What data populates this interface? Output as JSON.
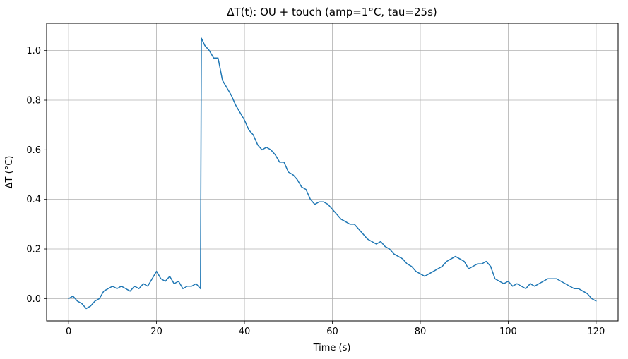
{
  "chart_data": {
    "type": "line",
    "title": "ΔT(t): OU + touch (amp=1°C, tau=25s)",
    "xlabel": "Time (s)",
    "ylabel": "ΔT (°C)",
    "xlim": [
      -5,
      125
    ],
    "ylim": [
      -0.09,
      1.11
    ],
    "grid": true,
    "legend": "none",
    "line_color": "#1f77b4",
    "grid_color": "#b0b0b0",
    "xticks": {
      "values": [
        0,
        20,
        40,
        60,
        80,
        100,
        120
      ],
      "labels": [
        "0",
        "20",
        "40",
        "60",
        "80",
        "100",
        "120"
      ]
    },
    "yticks": {
      "values": [
        0.0,
        0.2,
        0.4,
        0.6,
        0.8,
        1.0
      ],
      "labels": [
        "0.0",
        "0.2",
        "0.4",
        "0.6",
        "0.8",
        "1.0"
      ]
    },
    "series": [
      {
        "name": "ΔT",
        "x": [
          0,
          1,
          2,
          3,
          4,
          5,
          6,
          7,
          8,
          9,
          10,
          11,
          12,
          13,
          14,
          15,
          16,
          17,
          18,
          19,
          20,
          21,
          22,
          23,
          24,
          25,
          26,
          27,
          28,
          29,
          30,
          30.2,
          31,
          32,
          33,
          34,
          35,
          36,
          37,
          38,
          39,
          40,
          41,
          42,
          43,
          44,
          45,
          46,
          47,
          48,
          49,
          50,
          51,
          52,
          53,
          54,
          55,
          56,
          57,
          58,
          59,
          60,
          61,
          62,
          63,
          64,
          65,
          66,
          67,
          68,
          69,
          70,
          71,
          72,
          73,
          74,
          75,
          76,
          77,
          78,
          79,
          80,
          81,
          82,
          83,
          84,
          85,
          86,
          87,
          88,
          89,
          90,
          91,
          92,
          93,
          94,
          95,
          96,
          97,
          98,
          99,
          100,
          101,
          102,
          103,
          104,
          105,
          106,
          107,
          108,
          109,
          110,
          111,
          112,
          113,
          114,
          115,
          116,
          117,
          118,
          119,
          120
        ],
        "y": [
          0.0,
          0.01,
          -0.01,
          -0.02,
          -0.04,
          -0.03,
          -0.01,
          0.0,
          0.03,
          0.04,
          0.05,
          0.04,
          0.05,
          0.04,
          0.03,
          0.05,
          0.04,
          0.06,
          0.05,
          0.08,
          0.11,
          0.08,
          0.07,
          0.09,
          0.06,
          0.07,
          0.04,
          0.05,
          0.05,
          0.06,
          0.04,
          1.05,
          1.02,
          1.0,
          0.97,
          0.97,
          0.88,
          0.85,
          0.82,
          0.78,
          0.75,
          0.72,
          0.68,
          0.66,
          0.62,
          0.6,
          0.61,
          0.6,
          0.58,
          0.55,
          0.55,
          0.51,
          0.5,
          0.48,
          0.45,
          0.44,
          0.4,
          0.38,
          0.39,
          0.39,
          0.38,
          0.36,
          0.34,
          0.32,
          0.31,
          0.3,
          0.3,
          0.28,
          0.26,
          0.24,
          0.23,
          0.22,
          0.23,
          0.21,
          0.2,
          0.18,
          0.17,
          0.16,
          0.14,
          0.13,
          0.11,
          0.1,
          0.09,
          0.1,
          0.11,
          0.12,
          0.13,
          0.15,
          0.16,
          0.17,
          0.16,
          0.15,
          0.12,
          0.13,
          0.14,
          0.14,
          0.15,
          0.13,
          0.08,
          0.07,
          0.06,
          0.07,
          0.05,
          0.06,
          0.05,
          0.04,
          0.06,
          0.05,
          0.06,
          0.07,
          0.08,
          0.08,
          0.08,
          0.07,
          0.06,
          0.05,
          0.04,
          0.04,
          0.03,
          0.02,
          0.0,
          -0.01
        ]
      }
    ]
  }
}
